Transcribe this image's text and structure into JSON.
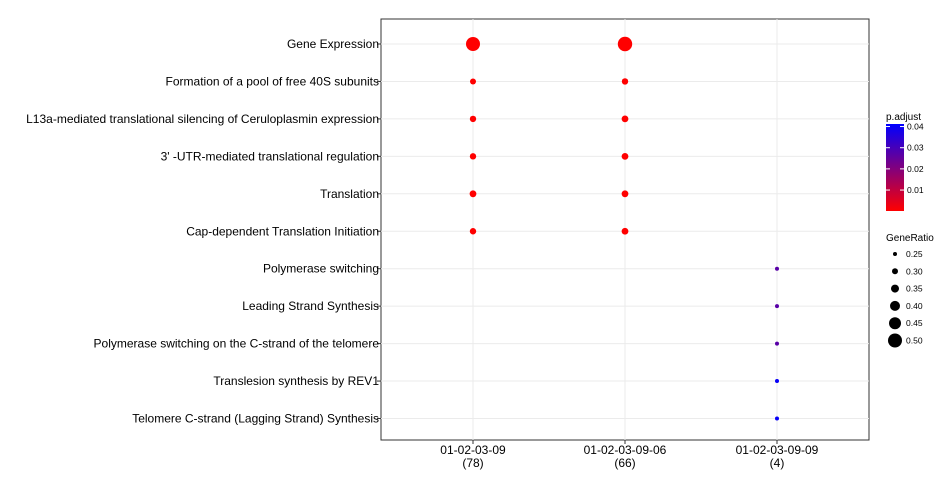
{
  "chart_data": {
    "type": "scatter",
    "x_categories": [
      {
        "label": "01-02-03-09",
        "count": "(78)"
      },
      {
        "label": "01-02-03-09-06",
        "count": "(66)"
      },
      {
        "label": "01-02-03-09-09",
        "count": "(4)"
      }
    ],
    "y_categories": [
      "Gene Expression",
      "Formation of a pool of free 40S subunits",
      "L13a-mediated translational silencing of Ceruloplasmin expression",
      "3' -UTR-mediated translational regulation",
      "Translation",
      "Cap-dependent Translation Initiation",
      "Polymerase switching",
      "Leading Strand Synthesis",
      "Polymerase switching on the C-strand of the telomere",
      "Translesion synthesis by REV1",
      "Telomere C-strand (Lagging Strand) Synthesis"
    ],
    "points": [
      {
        "x": "01-02-03-09",
        "y": "Gene Expression",
        "gene_ratio": 0.5,
        "p_adjust": 0.0001
      },
      {
        "x": "01-02-03-09",
        "y": "Formation of a pool of free 40S subunits",
        "gene_ratio": 0.3,
        "p_adjust": 0.0001
      },
      {
        "x": "01-02-03-09",
        "y": "L13a-mediated translational silencing of Ceruloplasmin expression",
        "gene_ratio": 0.31,
        "p_adjust": 0.0001
      },
      {
        "x": "01-02-03-09",
        "y": "3' -UTR-mediated translational regulation",
        "gene_ratio": 0.31,
        "p_adjust": 0.0001
      },
      {
        "x": "01-02-03-09",
        "y": "Translation",
        "gene_ratio": 0.32,
        "p_adjust": 0.0001
      },
      {
        "x": "01-02-03-09",
        "y": "Cap-dependent Translation Initiation",
        "gene_ratio": 0.31,
        "p_adjust": 0.0001
      },
      {
        "x": "01-02-03-09-06",
        "y": "Gene Expression",
        "gene_ratio": 0.51,
        "p_adjust": 0.0001
      },
      {
        "x": "01-02-03-09-06",
        "y": "Formation of a pool of free 40S subunits",
        "gene_ratio": 0.31,
        "p_adjust": 0.0001
      },
      {
        "x": "01-02-03-09-06",
        "y": "L13a-mediated translational silencing of Ceruloplasmin expression",
        "gene_ratio": 0.32,
        "p_adjust": 0.0001
      },
      {
        "x": "01-02-03-09-06",
        "y": "3' -UTR-mediated translational regulation",
        "gene_ratio": 0.32,
        "p_adjust": 0.0001
      },
      {
        "x": "01-02-03-09-06",
        "y": "Translation",
        "gene_ratio": 0.32,
        "p_adjust": 0.0001
      },
      {
        "x": "01-02-03-09-06",
        "y": "Cap-dependent Translation Initiation",
        "gene_ratio": 0.32,
        "p_adjust": 0.0001
      },
      {
        "x": "01-02-03-09-09",
        "y": "Polymerase switching",
        "gene_ratio": 0.25,
        "p_adjust": 0.027
      },
      {
        "x": "01-02-03-09-09",
        "y": "Leading Strand Synthesis",
        "gene_ratio": 0.25,
        "p_adjust": 0.027
      },
      {
        "x": "01-02-03-09-09",
        "y": "Polymerase switching on the C-strand of the telomere",
        "gene_ratio": 0.25,
        "p_adjust": 0.027
      },
      {
        "x": "01-02-03-09-09",
        "y": "Translesion synthesis by REV1",
        "gene_ratio": 0.25,
        "p_adjust": 0.04
      },
      {
        "x": "01-02-03-09-09",
        "y": "Telomere C-strand (Lagging Strand) Synthesis",
        "gene_ratio": 0.25,
        "p_adjust": 0.04
      }
    ],
    "color_legend": {
      "title": "p.adjust",
      "ticks": [
        "0.04",
        "0.03",
        "0.02",
        "0.01"
      ],
      "tick_values": [
        0.04,
        0.03,
        0.02,
        0.01
      ],
      "range": [
        0.0001,
        0.0412
      ],
      "low_color": "#ff0000",
      "high_color": "#0000ff"
    },
    "size_legend": {
      "title": "GeneRatio",
      "labels": [
        "0.25",
        "0.30",
        "0.35",
        "0.40",
        "0.45",
        "0.50"
      ],
      "values": [
        0.25,
        0.3,
        0.35,
        0.4,
        0.45,
        0.5
      ]
    },
    "grid": true,
    "legend_placement": "right"
  }
}
